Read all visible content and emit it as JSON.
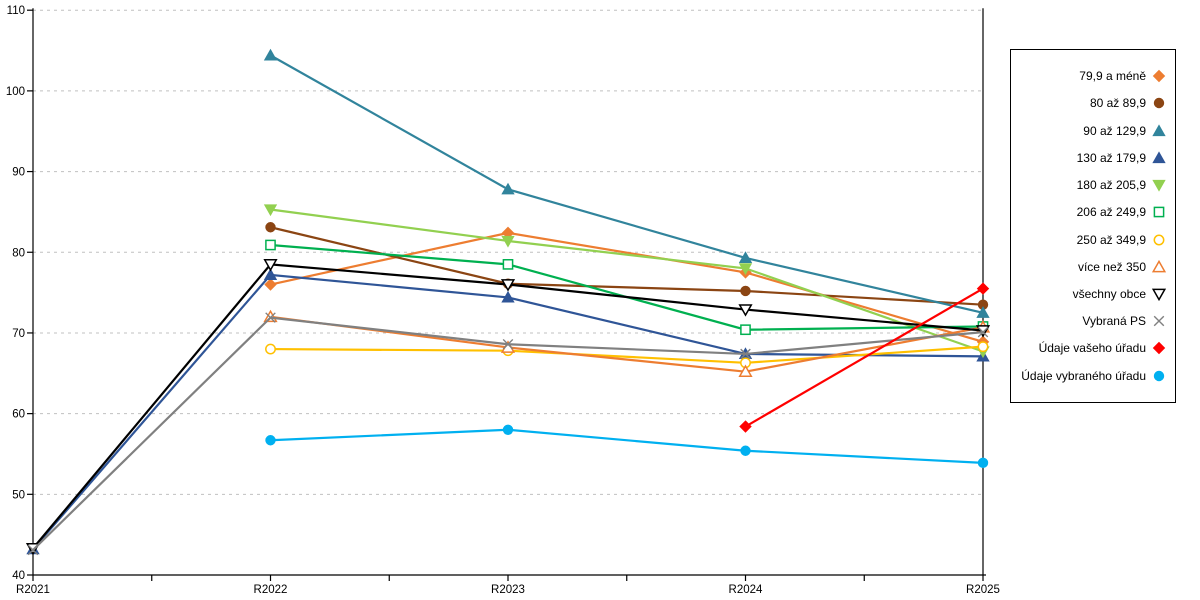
{
  "chart_data": {
    "type": "line",
    "title": "",
    "xlabel": "",
    "ylabel": "",
    "categories": [
      "R2021",
      "R2022",
      "R2023",
      "R2024",
      "R2025"
    ],
    "ylim": [
      40,
      110
    ],
    "ytick_step": 10,
    "grid": "horizontal-dashed",
    "legend_position": "right",
    "series": [
      {
        "name": "79,9 a méně",
        "color": "#ED7D31",
        "marker": "diamond",
        "fill": "filled",
        "values": [
          null,
          76.0,
          82.4,
          77.5,
          68.9
        ]
      },
      {
        "name": "80 až 89,9",
        "color": "#8B4513",
        "marker": "circle",
        "fill": "filled",
        "values": [
          null,
          83.1,
          76.1,
          75.2,
          73.5
        ]
      },
      {
        "name": "90 až 129,9",
        "color": "#31849C",
        "marker": "triangle-up",
        "fill": "filled",
        "values": [
          null,
          104.4,
          87.8,
          79.3,
          72.5
        ]
      },
      {
        "name": "130 až 179,9",
        "color": "#2F5597",
        "marker": "triangle-up",
        "fill": "filled",
        "values": [
          43.2,
          77.2,
          74.4,
          67.4,
          67.1
        ]
      },
      {
        "name": "180 až 205,9",
        "color": "#92D050",
        "marker": "triangle-down",
        "fill": "filled",
        "values": [
          null,
          85.3,
          81.4,
          78.0,
          67.7
        ]
      },
      {
        "name": "206 až 249,9",
        "color": "#00B050",
        "marker": "square",
        "fill": "open",
        "values": [
          null,
          80.9,
          78.5,
          70.4,
          70.8
        ]
      },
      {
        "name": "250 až 349,9",
        "color": "#FFC000",
        "marker": "circle",
        "fill": "open",
        "values": [
          null,
          68.0,
          67.8,
          66.3,
          68.3
        ]
      },
      {
        "name": "více než 350",
        "color": "#ED7D31",
        "marker": "triangle-up",
        "fill": "open",
        "values": [
          null,
          72.0,
          68.2,
          65.2,
          70.7
        ]
      },
      {
        "name": "všechny obce",
        "color": "#000000",
        "marker": "triangle-down",
        "fill": "open",
        "values": [
          43.3,
          78.5,
          76.0,
          72.9,
          70.3
        ]
      },
      {
        "name": "Vybraná PS",
        "color": "#808080",
        "marker": "x",
        "fill": "open",
        "values": [
          43.1,
          71.9,
          68.6,
          67.4,
          70.1
        ]
      },
      {
        "name": "Údaje vašeho úřadu",
        "color": "#FF0000",
        "marker": "diamond",
        "fill": "filled",
        "values": [
          null,
          null,
          null,
          58.4,
          75.5
        ]
      },
      {
        "name": "Údaje vybraného úřadu",
        "color": "#00B0F0",
        "marker": "circle",
        "fill": "filled",
        "values": [
          null,
          56.7,
          58.0,
          55.4,
          53.9
        ]
      }
    ]
  },
  "colors": {
    "axis": "#000000",
    "gridline": "#C0C0C0",
    "background": "#FFFFFF"
  }
}
